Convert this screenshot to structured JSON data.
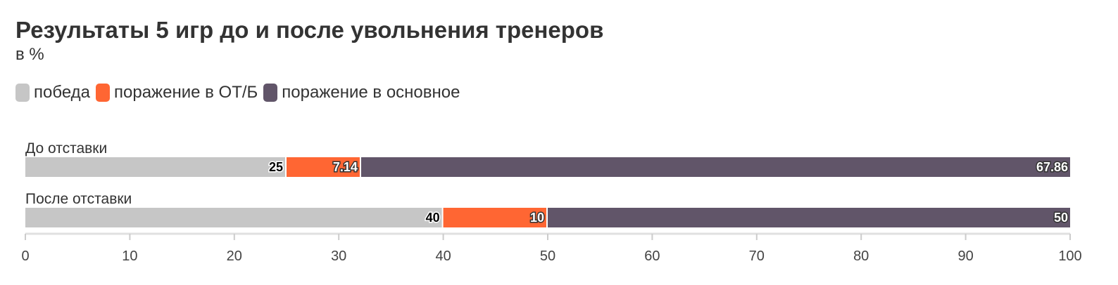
{
  "chart_data": {
    "type": "bar",
    "orientation": "horizontal",
    "stacked": true,
    "title": "Результаты 5 игр до и после увольнения тренеров",
    "subtitle": "в %",
    "categories": [
      "До отставки",
      "После отставки"
    ],
    "series": [
      {
        "name": "победа",
        "color": "#c6c6c6",
        "values": [
          25,
          40
        ],
        "labels": [
          "25",
          "40"
        ],
        "label_color": "#000000"
      },
      {
        "name": "поражение в ОТ/Б",
        "color": "#ff6633",
        "values": [
          7.14,
          10
        ],
        "labels": [
          "7.14",
          "10"
        ],
        "label_color": "#ffffff"
      },
      {
        "name": "поражение в основное",
        "color": "#615569",
        "values": [
          67.86,
          50
        ],
        "labels": [
          "67.86",
          "50"
        ],
        "label_color": "#ffffff"
      }
    ],
    "xlim": [
      0,
      100
    ],
    "xticks": [
      "0",
      "10",
      "20",
      "30",
      "40",
      "50",
      "60",
      "70",
      "80",
      "90",
      "100"
    ],
    "legend_position": "top-left",
    "grid": false
  }
}
